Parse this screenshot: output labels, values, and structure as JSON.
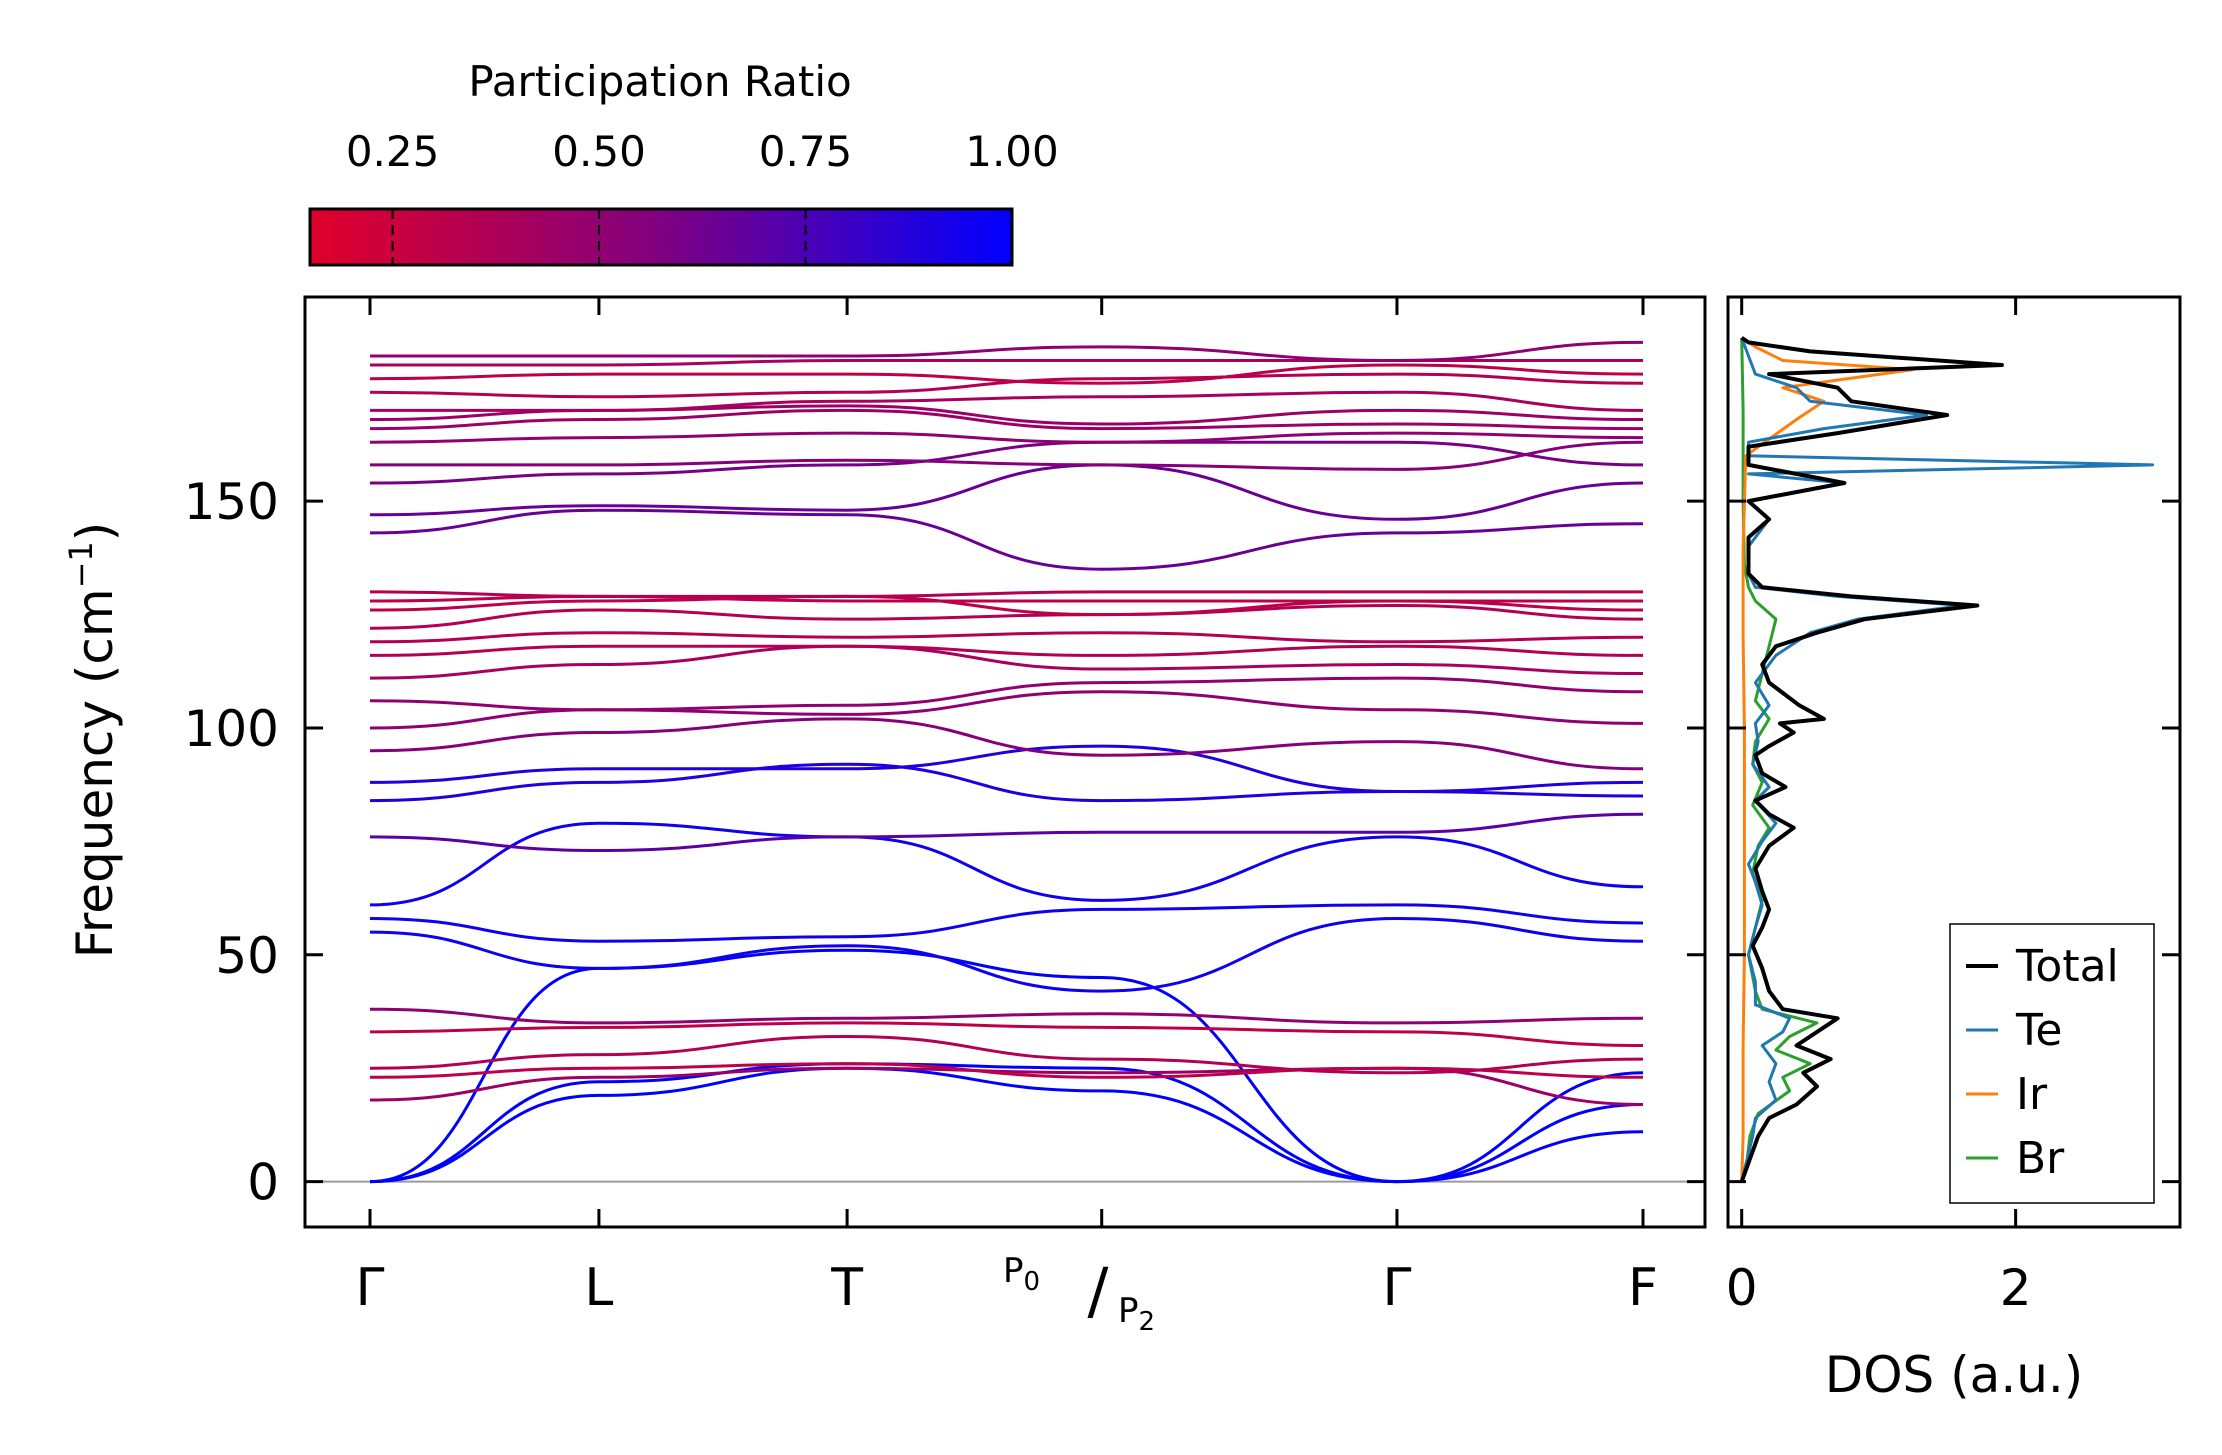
{
  "chart_data": [
    {
      "type": "line",
      "subtype": "phonon-dispersion",
      "title": "",
      "xlabel": "",
      "ylabel": "Frequency (cm",
      "ylabel_sup": "−1",
      "ylabel_close": ")",
      "ylim": [
        -10,
        195
      ],
      "yticks": [
        0,
        50,
        100,
        150
      ],
      "ytick_labels": [
        "0",
        "50",
        "100",
        "150"
      ],
      "path_positions": [
        0,
        1.07,
        2.23,
        3.42,
        4.8,
        5.95
      ],
      "path_labels": [
        "Γ",
        "L",
        "T",
        "",
        "Γ",
        "F"
      ],
      "p_label_top": "P",
      "p_label_top_sub": "0",
      "p_label_bottom": "P",
      "p_label_bottom_sub": "2",
      "colorbar": {
        "label": "Participation Ratio",
        "range": [
          0.15,
          1.0
        ],
        "ticks": [
          0.25,
          0.5,
          0.75,
          1.0
        ],
        "tick_labels": [
          "0.25",
          "0.50",
          "0.75",
          "1.00"
        ],
        "colors": [
          "#e0002a",
          "#800080",
          "#0000ff"
        ]
      },
      "bands": [
        {
          "pr": 1.0,
          "values": [
            0,
            19,
            25,
            20,
            0,
            11
          ]
        },
        {
          "pr": 1.0,
          "values": [
            0,
            22,
            26,
            25,
            0,
            17
          ]
        },
        {
          "pr": 1.0,
          "values": [
            0,
            47,
            51,
            45,
            0,
            24
          ]
        },
        {
          "pr": 0.45,
          "values": [
            18,
            23,
            25,
            24,
            25,
            17
          ]
        },
        {
          "pr": 0.3,
          "values": [
            23,
            25,
            26,
            23,
            25,
            23
          ]
        },
        {
          "pr": 0.35,
          "values": [
            25,
            28,
            32,
            27,
            24,
            27
          ]
        },
        {
          "pr": 0.3,
          "values": [
            33,
            34,
            35,
            34,
            33,
            30
          ]
        },
        {
          "pr": 0.5,
          "values": [
            38,
            35,
            36,
            37,
            35,
            36
          ]
        },
        {
          "pr": 0.95,
          "values": [
            55,
            47,
            52,
            42,
            58,
            53
          ]
        },
        {
          "pr": 0.95,
          "values": [
            58,
            53,
            54,
            60,
            61,
            57
          ]
        },
        {
          "pr": 0.95,
          "values": [
            61,
            79,
            76,
            62,
            76,
            65
          ]
        },
        {
          "pr": 0.7,
          "values": [
            76,
            73,
            76,
            77,
            77,
            81
          ]
        },
        {
          "pr": 0.9,
          "values": [
            84,
            88,
            92,
            84,
            86,
            88
          ]
        },
        {
          "pr": 0.9,
          "values": [
            88,
            91,
            91,
            96,
            86,
            85
          ]
        },
        {
          "pr": 0.55,
          "values": [
            95,
            99,
            102,
            94,
            97,
            91
          ]
        },
        {
          "pr": 0.5,
          "values": [
            100,
            104,
            103,
            108,
            104,
            101
          ]
        },
        {
          "pr": 0.5,
          "values": [
            106,
            104,
            105,
            110,
            111,
            108
          ]
        },
        {
          "pr": 0.4,
          "values": [
            111,
            114,
            118,
            113,
            114,
            112
          ]
        },
        {
          "pr": 0.35,
          "values": [
            116,
            118,
            118,
            116,
            118,
            116
          ]
        },
        {
          "pr": 0.35,
          "values": [
            119,
            121,
            120,
            121,
            119,
            120
          ]
        },
        {
          "pr": 0.35,
          "values": [
            122,
            126,
            124,
            125,
            127,
            124
          ]
        },
        {
          "pr": 0.3,
          "values": [
            126,
            128,
            129,
            125,
            128,
            126
          ]
        },
        {
          "pr": 0.3,
          "values": [
            128,
            129,
            128,
            128,
            128,
            128
          ]
        },
        {
          "pr": 0.35,
          "values": [
            130,
            129,
            129,
            130,
            130,
            130
          ]
        },
        {
          "pr": 0.65,
          "values": [
            143,
            148,
            147,
            135,
            143,
            145
          ]
        },
        {
          "pr": 0.65,
          "values": [
            147,
            149,
            148,
            158,
            146,
            154
          ]
        },
        {
          "pr": 0.6,
          "values": [
            154,
            156,
            158,
            163,
            163,
            158
          ]
        },
        {
          "pr": 0.55,
          "values": [
            158,
            158,
            159,
            158,
            157,
            163
          ]
        },
        {
          "pr": 0.5,
          "values": [
            163,
            164,
            165,
            163,
            165,
            164
          ]
        },
        {
          "pr": 0.45,
          "values": [
            166,
            168,
            170,
            166,
            167,
            166
          ]
        },
        {
          "pr": 0.45,
          "values": [
            168,
            170,
            171,
            167,
            170,
            168
          ]
        },
        {
          "pr": 0.4,
          "values": [
            170,
            170,
            172,
            173,
            174,
            170
          ]
        },
        {
          "pr": 0.35,
          "values": [
            174,
            173,
            174,
            177,
            178,
            176
          ]
        },
        {
          "pr": 0.3,
          "values": [
            177,
            178,
            178,
            176,
            180,
            178
          ]
        },
        {
          "pr": 0.4,
          "values": [
            180,
            180,
            181,
            181,
            181,
            181
          ]
        },
        {
          "pr": 0.5,
          "values": [
            182,
            182,
            182,
            184,
            181,
            185
          ]
        }
      ]
    },
    {
      "type": "line",
      "subtype": "density-of-states",
      "xlabel": "DOS (a.u.)",
      "ylabel": "",
      "xlim": [
        -0.1,
        3.2
      ],
      "xticks": [
        0,
        2
      ],
      "xtick_labels": [
        "0",
        "2"
      ],
      "ylim": [
        -10,
        195
      ],
      "legend_position": "lower-right",
      "series": [
        {
          "name": "Total",
          "color": "#000000",
          "values": [
            [
              0,
              0
            ],
            [
              0.06,
              5
            ],
            [
              0.12,
              10
            ],
            [
              0.2,
              14
            ],
            [
              0.4,
              17
            ],
            [
              0.55,
              21
            ],
            [
              0.45,
              24
            ],
            [
              0.65,
              27
            ],
            [
              0.4,
              30
            ],
            [
              0.55,
              33
            ],
            [
              0.7,
              36
            ],
            [
              0.3,
              38
            ],
            [
              0.2,
              42
            ],
            [
              0.15,
              47
            ],
            [
              0.08,
              52
            ],
            [
              0.15,
              56
            ],
            [
              0.2,
              60
            ],
            [
              0.15,
              64
            ],
            [
              0.1,
              69
            ],
            [
              0.2,
              74
            ],
            [
              0.38,
              78
            ],
            [
              0.2,
              81
            ],
            [
              0.1,
              84
            ],
            [
              0.32,
              87
            ],
            [
              0.15,
              90
            ],
            [
              0.1,
              94
            ],
            [
              0.2,
              96
            ],
            [
              0.38,
              99
            ],
            [
              0.28,
              101
            ],
            [
              0.6,
              102
            ],
            [
              0.42,
              105
            ],
            [
              0.2,
              110
            ],
            [
              0.15,
              114
            ],
            [
              0.25,
              118
            ],
            [
              0.55,
              121
            ],
            [
              0.9,
              124
            ],
            [
              1.72,
              127
            ],
            [
              0.8,
              129
            ],
            [
              0.15,
              131
            ],
            [
              0.05,
              134
            ],
            [
              0.05,
              142
            ],
            [
              0.2,
              146
            ],
            [
              0.05,
              150
            ],
            [
              0.75,
              154
            ],
            [
              0.05,
              158
            ],
            [
              0.05,
              162
            ],
            [
              0.7,
              165
            ],
            [
              1.5,
              169
            ],
            [
              0.8,
              172
            ],
            [
              0.7,
              175
            ],
            [
              0.2,
              178
            ],
            [
              1.9,
              180
            ],
            [
              0.5,
              183
            ],
            [
              0.05,
              185
            ],
            [
              0,
              186
            ]
          ]
        },
        {
          "name": "Te",
          "color": "#1f77b4",
          "values": [
            [
              0,
              0
            ],
            [
              0.04,
              5
            ],
            [
              0.08,
              10
            ],
            [
              0.1,
              14
            ],
            [
              0.25,
              18
            ],
            [
              0.2,
              22
            ],
            [
              0.25,
              26
            ],
            [
              0.15,
              30
            ],
            [
              0.3,
              33
            ],
            [
              0.35,
              36
            ],
            [
              0.1,
              39
            ],
            [
              0.1,
              44
            ],
            [
              0.05,
              50
            ],
            [
              0.1,
              56
            ],
            [
              0.15,
              61
            ],
            [
              0.1,
              66
            ],
            [
              0.05,
              70
            ],
            [
              0.15,
              75
            ],
            [
              0.25,
              79
            ],
            [
              0.1,
              84
            ],
            [
              0.2,
              87
            ],
            [
              0.08,
              92
            ],
            [
              0.12,
              97
            ],
            [
              0.1,
              101
            ],
            [
              0.2,
              105
            ],
            [
              0.1,
              110
            ],
            [
              0.25,
              116
            ],
            [
              0.5,
              121
            ],
            [
              0.85,
              124
            ],
            [
              1.62,
              127
            ],
            [
              0.7,
              129
            ],
            [
              0.1,
              131
            ],
            [
              0.05,
              134
            ],
            [
              0.05,
              140
            ],
            [
              0.2,
              146
            ],
            [
              0.05,
              150
            ],
            [
              0.75,
              154
            ],
            [
              0.05,
              156
            ],
            [
              3.0,
              158
            ],
            [
              0.05,
              160
            ],
            [
              0.05,
              163
            ],
            [
              0.6,
              166
            ],
            [
              1.35,
              169
            ],
            [
              0.5,
              172
            ],
            [
              0.4,
              175
            ],
            [
              0.1,
              178
            ],
            [
              0.05,
              182
            ],
            [
              0,
              186
            ]
          ]
        },
        {
          "name": "Ir",
          "color": "#ff7f0e",
          "values": [
            [
              0,
              0
            ],
            [
              0.01,
              10
            ],
            [
              0.01,
              20
            ],
            [
              0.01,
              30
            ],
            [
              0.02,
              50
            ],
            [
              0.02,
              80
            ],
            [
              0.02,
              100
            ],
            [
              0.01,
              120
            ],
            [
              0.01,
              140
            ],
            [
              0.03,
              160
            ],
            [
              0.4,
              168
            ],
            [
              0.6,
              172
            ],
            [
              0.3,
              175
            ],
            [
              1.25,
              179
            ],
            [
              0.3,
              181
            ],
            [
              0.1,
              184
            ],
            [
              0,
              186
            ]
          ]
        },
        {
          "name": "Br",
          "color": "#2ca02c",
          "values": [
            [
              0,
              0
            ],
            [
              0.04,
              5
            ],
            [
              0.06,
              10
            ],
            [
              0.12,
              15
            ],
            [
              0.35,
              20
            ],
            [
              0.3,
              23
            ],
            [
              0.5,
              26
            ],
            [
              0.25,
              29
            ],
            [
              0.35,
              32
            ],
            [
              0.55,
              35
            ],
            [
              0.15,
              38
            ],
            [
              0.1,
              42
            ],
            [
              0.05,
              50
            ],
            [
              0.1,
              56
            ],
            [
              0.15,
              62
            ],
            [
              0.08,
              68
            ],
            [
              0.12,
              74
            ],
            [
              0.2,
              78
            ],
            [
              0.08,
              83
            ],
            [
              0.15,
              88
            ],
            [
              0.08,
              92
            ],
            [
              0.1,
              97
            ],
            [
              0.2,
              102
            ],
            [
              0.1,
              106
            ],
            [
              0.15,
              112
            ],
            [
              0.2,
              118
            ],
            [
              0.25,
              124
            ],
            [
              0.1,
              128
            ],
            [
              0.05,
              131
            ],
            [
              0.02,
              136
            ],
            [
              0.01,
              150
            ],
            [
              0.01,
              170
            ],
            [
              0,
              186
            ]
          ]
        }
      ]
    }
  ]
}
